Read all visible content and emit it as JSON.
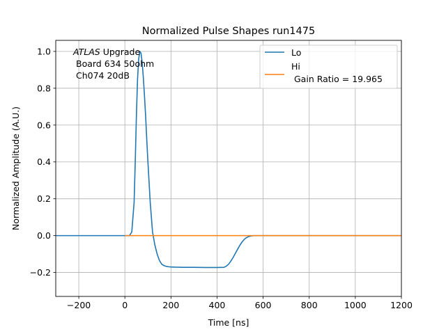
{
  "chart_data": {
    "type": "line",
    "title": "Normalized Pulse Shapes run1475",
    "xlabel": "Time [ns]",
    "ylabel": "Normalized Amplitude (A.U.)",
    "xlim": [
      -300,
      1200
    ],
    "ylim": [
      -0.33,
      1.06
    ],
    "xticks": [
      -200,
      0,
      200,
      400,
      600,
      800,
      1000,
      1200
    ],
    "yticks": [
      -0.2,
      0.0,
      0.2,
      0.4,
      0.6,
      0.8,
      1.0
    ],
    "xtick_labels": [
      "−200",
      "0",
      "200",
      "400",
      "600",
      "800",
      "1000",
      "1200"
    ],
    "ytick_labels": [
      "−0.2",
      "0.0",
      "0.2",
      "0.4",
      "0.6",
      "0.8",
      "1.0"
    ],
    "grid": true,
    "legend_position": "top-right",
    "annotation": {
      "italic": "ATLAS",
      "rest": " Upgrade",
      "line2": "Board 634 50ohm",
      "line3": "Ch074 20dB"
    },
    "series": [
      {
        "name": "Lo",
        "color": "#1f77b4",
        "x": [
          -300,
          -100,
          0,
          20,
          30,
          40,
          45,
          50,
          55,
          60,
          65,
          70,
          75,
          80,
          85,
          90,
          95,
          100,
          110,
          120,
          130,
          140,
          150,
          160,
          170,
          180,
          190,
          200,
          220,
          250,
          300,
          350,
          400,
          430,
          440,
          450,
          460,
          470,
          480,
          490,
          500,
          510,
          520,
          530,
          540,
          550,
          560,
          600,
          800,
          1000,
          1200
        ],
        "y": [
          0.0,
          0.0,
          0.0,
          0.0,
          0.02,
          0.18,
          0.4,
          0.65,
          0.85,
          0.96,
          1.0,
          0.99,
          0.94,
          0.86,
          0.76,
          0.65,
          0.52,
          0.4,
          0.18,
          0.02,
          -0.05,
          -0.1,
          -0.135,
          -0.155,
          -0.163,
          -0.167,
          -0.169,
          -0.17,
          -0.171,
          -0.172,
          -0.172,
          -0.173,
          -0.173,
          -0.172,
          -0.166,
          -0.155,
          -0.138,
          -0.118,
          -0.095,
          -0.072,
          -0.05,
          -0.032,
          -0.018,
          -0.009,
          -0.004,
          -0.001,
          0.0,
          0.0,
          0.0,
          0.0,
          0.0
        ]
      },
      {
        "name": "Hi\n Gain Ratio = 19.965",
        "color": "#ff7f0e",
        "x": [
          0,
          1200
        ],
        "y": [
          0.0,
          0.0
        ]
      }
    ]
  },
  "legend": {
    "lo_label": "Lo",
    "hi_label_line1": "Hi",
    "hi_label_line2": "Gain Ratio = 19.965"
  }
}
